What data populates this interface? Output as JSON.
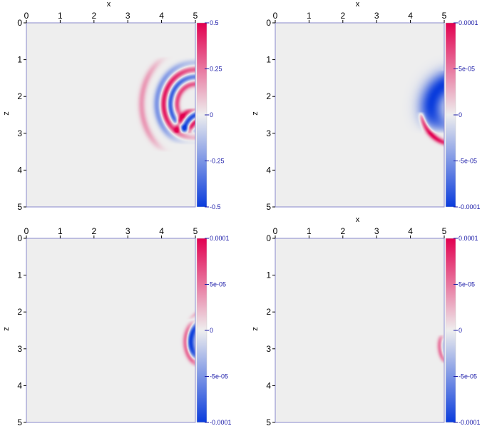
{
  "chart_data": [
    {
      "type": "heatmap",
      "xlabel": "x",
      "ylabel": "z",
      "xlim": [
        0,
        5
      ],
      "ylim": [
        5,
        0
      ],
      "x_ticks": [
        "0",
        "1",
        "2",
        "3",
        "4",
        "5"
      ],
      "z_ticks": [
        "0",
        "1",
        "2",
        "3",
        "4",
        "5"
      ],
      "colorbar": {
        "min": -0.5,
        "max": 0.5,
        "tick_labels": [
          "0.5",
          "0.25",
          "0",
          "-0.25",
          "-0.5"
        ]
      },
      "features": [
        {
          "shape": "arc",
          "cx": 5.0,
          "cz": 2.2,
          "r": 1.6,
          "thickness": 0.1,
          "z0": 0.9,
          "z1": 3.5,
          "amp": 0.18
        },
        {
          "shape": "arc",
          "cx": 5.0,
          "cz": 2.2,
          "r": 1.15,
          "thickness": 0.1,
          "z0": 0.9,
          "z1": 3.3,
          "amp": -0.25
        },
        {
          "shape": "arc",
          "cx": 5.0,
          "cz": 2.2,
          "r": 0.95,
          "thickness": 0.09,
          "z0": 1.0,
          "z1": 3.2,
          "amp": 0.45
        },
        {
          "shape": "arc",
          "cx": 5.0,
          "cz": 2.2,
          "r": 0.75,
          "thickness": 0.08,
          "z0": 1.2,
          "z1": 3.0,
          "amp": -0.4
        },
        {
          "shape": "arc",
          "cx": 5.0,
          "cz": 2.2,
          "r": 0.55,
          "thickness": 0.08,
          "z0": 1.4,
          "z1": 2.6,
          "amp": 0.35
        },
        {
          "shape": "arc",
          "cx": 5.2,
          "cz": 3.0,
          "r": 0.75,
          "thickness": 0.09,
          "z0": 2.3,
          "z1": 3.0,
          "amp": 0.5
        },
        {
          "shape": "arc",
          "cx": 5.2,
          "cz": 3.0,
          "r": 0.55,
          "thickness": 0.09,
          "z0": 2.3,
          "z1": 3.0,
          "amp": -0.45
        },
        {
          "shape": "arc",
          "cx": 5.2,
          "cz": 3.0,
          "r": 0.38,
          "thickness": 0.08,
          "z0": 2.4,
          "z1": 3.0,
          "amp": 0.45
        }
      ]
    },
    {
      "type": "heatmap",
      "xlabel": "x",
      "ylabel": "z",
      "xlim": [
        0,
        5
      ],
      "ylim": [
        5,
        0
      ],
      "x_ticks": [
        "0",
        "1",
        "2",
        "3",
        "4",
        "5"
      ],
      "z_ticks": [
        "0",
        "1",
        "2",
        "3",
        "4",
        "5"
      ],
      "colorbar": {
        "min": -0.0001,
        "max": 0.0001,
        "tick_labels": [
          "0.0001",
          "5e-05",
          "0",
          "-5e-05",
          "-0.0001"
        ]
      },
      "features": [
        {
          "shape": "arc",
          "cx": 5.3,
          "cz": 2.3,
          "r": 0.7,
          "thickness": 0.35,
          "z0": 0.7,
          "z1": 3.0,
          "amp": -0.0001
        },
        {
          "shape": "arc",
          "cx": 5.3,
          "cz": 2.3,
          "r": 1.0,
          "thickness": 0.08,
          "z0": 2.4,
          "z1": 3.4,
          "amp": 0.0001
        },
        {
          "shape": "arc",
          "cx": 5.3,
          "cz": 2.3,
          "r": 1.0,
          "thickness": 0.08,
          "z0": 0.7,
          "z1": 1.3,
          "amp": 8e-05
        }
      ]
    },
    {
      "type": "heatmap",
      "xlabel": "",
      "ylabel": "z",
      "xlim": [
        0,
        5
      ],
      "ylim": [
        5,
        0
      ],
      "x_ticks": [
        "0",
        "1",
        "2",
        "3",
        "4",
        "5"
      ],
      "z_ticks": [
        "0",
        "1",
        "2",
        "3",
        "4",
        "5"
      ],
      "colorbar": {
        "min": -0.0001,
        "max": 0.0001,
        "tick_labels": [
          "0.0001",
          "5e-05",
          "0",
          "-5e-05",
          "-0.0001"
        ]
      },
      "features": [
        {
          "shape": "arc",
          "cx": 5.5,
          "cz": 2.8,
          "r": 0.65,
          "thickness": 0.12,
          "z0": 2.2,
          "z1": 3.3,
          "amp": -0.0001
        },
        {
          "shape": "arc",
          "cx": 5.5,
          "cz": 2.8,
          "r": 0.8,
          "thickness": 0.08,
          "z0": 2.2,
          "z1": 3.5,
          "amp": 7e-05
        },
        {
          "shape": "arc",
          "cx": 5.5,
          "cz": 2.8,
          "r": 0.9,
          "thickness": 0.06,
          "z0": 1.3,
          "z1": 2.2,
          "amp": 3e-05
        }
      ]
    },
    {
      "type": "heatmap",
      "xlabel": "x",
      "ylabel": "z",
      "xlim": [
        0,
        5
      ],
      "ylim": [
        5,
        0
      ],
      "x_ticks": [
        "0",
        "1",
        "2",
        "3",
        "4",
        "5"
      ],
      "z_ticks": [
        "0",
        "1",
        "2",
        "3",
        "4",
        "5"
      ],
      "colorbar": {
        "min": -0.0001,
        "max": 0.0001,
        "tick_labels": [
          "0.0001",
          "5e-05",
          "0",
          "-5e-05",
          "-0.0001"
        ]
      },
      "features": [
        {
          "shape": "arc",
          "cx": 5.6,
          "cz": 2.9,
          "r": 0.75,
          "thickness": 0.07,
          "z0": 2.6,
          "z1": 3.4,
          "amp": 5e-05
        },
        {
          "shape": "arc",
          "cx": 5.6,
          "cz": 2.9,
          "r": 0.65,
          "thickness": 0.06,
          "z0": 2.7,
          "z1": 3.3,
          "amp": -2e-05
        },
        {
          "shape": "arc",
          "cx": 5.6,
          "cz": 2.9,
          "r": 0.85,
          "thickness": 0.05,
          "z0": 1.2,
          "z1": 2.0,
          "amp": 2e-05
        }
      ]
    }
  ]
}
